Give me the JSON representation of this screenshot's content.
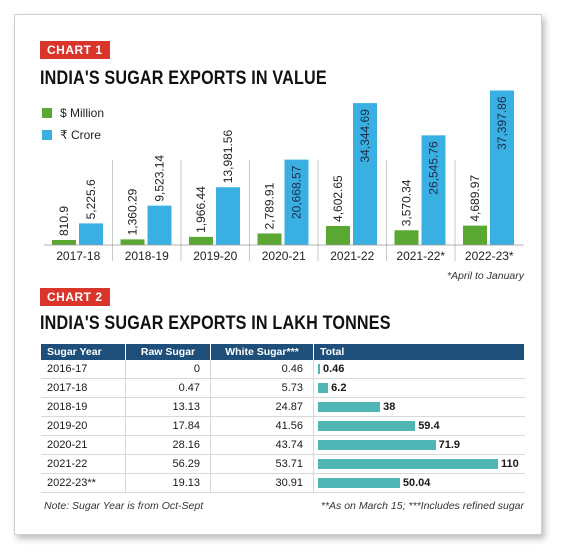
{
  "chart1": {
    "tag": "CHART 1",
    "title": "INDIA'S SUGAR EXPORTS IN VALUE",
    "legend": [
      "$ Million",
      "₹ Crore"
    ],
    "footnote": "*April to January"
  },
  "chart2": {
    "tag": "CHART 2",
    "title": "INDIA'S SUGAR EXPORTS IN LAKH TONNES",
    "headers": [
      "Sugar Year",
      "Raw Sugar",
      "White Sugar***",
      "Total"
    ],
    "note_left": "Note: Sugar Year is from Oct-Sept",
    "note_right": "**As on March 15; ***Includes refined sugar"
  },
  "chart_data": [
    {
      "type": "bar",
      "title": "INDIA'S SUGAR EXPORTS IN VALUE",
      "categories": [
        "2017-18",
        "2018-19",
        "2019-20",
        "2020-21",
        "2021-22",
        "2021-22*",
        "2022-23*"
      ],
      "series": [
        {
          "name": "$ Million",
          "color": "#5aa832",
          "values": [
            810.9,
            1360.29,
            1966.44,
            2789.91,
            4602.65,
            3570.34,
            4689.97
          ],
          "labels": [
            "810.9",
            "1,360.29",
            "1,966.44",
            "2,789.91",
            "4,602.65",
            "3,570.34",
            "4,689.97"
          ]
        },
        {
          "name": "₹ Crore",
          "color": "#3ab0e2",
          "values": [
            5225.6,
            9523.14,
            13981.56,
            20668.57,
            34344.69,
            26545.76,
            37397.86
          ],
          "labels": [
            "5,225.6",
            "9,523.14",
            "13,981.56",
            "20,668.57",
            "34,344.69",
            "26,545.76",
            "37,397.86"
          ]
        }
      ],
      "legend_position": "top-left",
      "grid": false
    },
    {
      "type": "table",
      "title": "INDIA'S SUGAR EXPORTS IN LAKH TONNES",
      "columns": [
        "Sugar Year",
        "Raw Sugar",
        "White Sugar***",
        "Total"
      ],
      "rows": [
        {
          "year": "2016-17",
          "raw": "0",
          "white": "0.46",
          "total": 0.46,
          "total_label": "0.46"
        },
        {
          "year": "2017-18",
          "raw": "0.47",
          "white": "5.73",
          "total": 6.2,
          "total_label": "6.2"
        },
        {
          "year": "2018-19",
          "raw": "13.13",
          "white": "24.87",
          "total": 38,
          "total_label": "38"
        },
        {
          "year": "2019-20",
          "raw": "17.84",
          "white": "41.56",
          "total": 59.4,
          "total_label": "59.4"
        },
        {
          "year": "2020-21",
          "raw": "28.16",
          "white": "43.74",
          "total": 71.9,
          "total_label": "71.9"
        },
        {
          "year": "2021-22",
          "raw": "56.29",
          "white": "53.71",
          "total": 110,
          "total_label": "110"
        },
        {
          "year": "2022-23**",
          "raw": "19.13",
          "white": "30.91",
          "total": 50.04,
          "total_label": "50.04"
        }
      ],
      "bar_color": "#4fb5b5"
    }
  ]
}
